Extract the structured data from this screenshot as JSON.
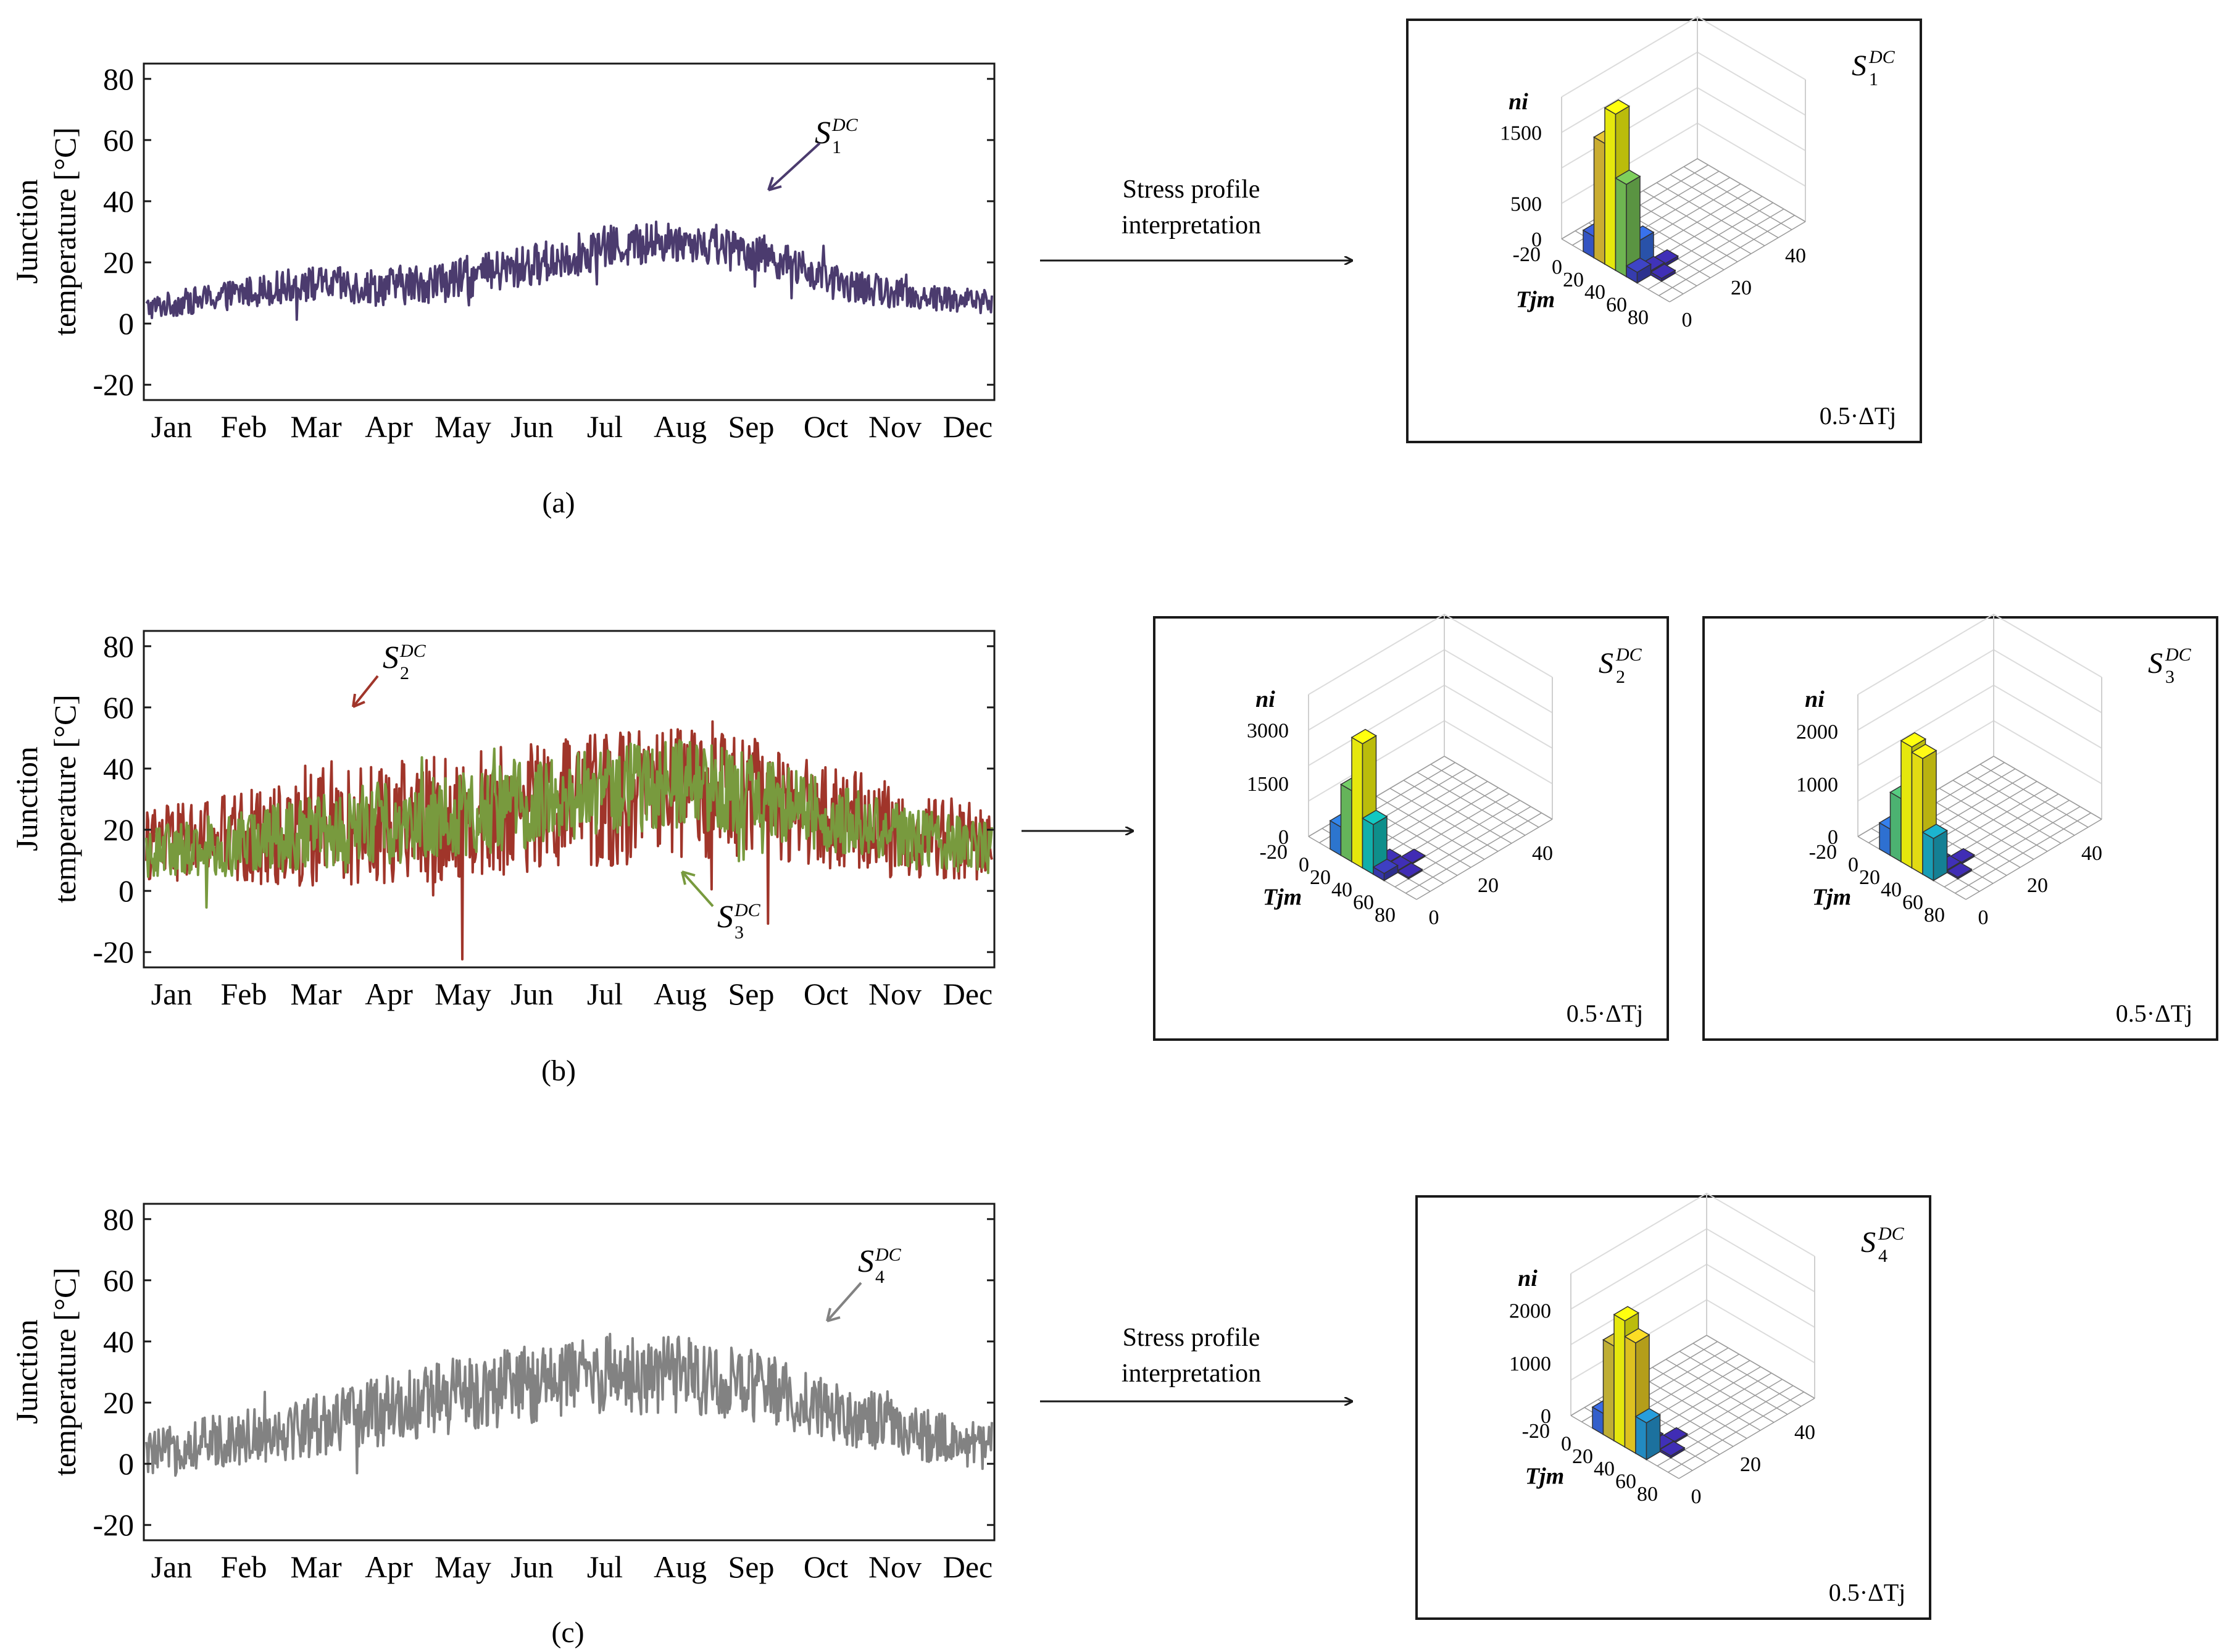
{
  "figure": {
    "arrow_text_line1": "Stress profile",
    "arrow_text_line2": "interpretation",
    "colors": {
      "s1": "#4b3b6e",
      "s2": "#a0352a",
      "s3": "#789a3e",
      "s4": "#828282"
    }
  },
  "chart_data": [
    {
      "type": "line",
      "panel": "(a)",
      "series": [
        {
          "name": "S1DC",
          "color": "#4b3b6e",
          "base": [
            5,
            9,
            13,
            12,
            14,
            19,
            25,
            27,
            23,
            13,
            9,
            7
          ],
          "amp": 7
        }
      ],
      "categories": [
        "Jan",
        "Feb",
        "Mar",
        "Apr",
        "May",
        "Jun",
        "Jul",
        "Aug",
        "Sep",
        "Oct",
        "Nov",
        "Dec"
      ],
      "yticks": [
        -20,
        0,
        20,
        40,
        60,
        80
      ],
      "ylim": [
        -25,
        85
      ],
      "ylabel_line1": "Junction",
      "ylabel_line2": "temperature [°C]",
      "annotation": {
        "base": "S",
        "sub": "1",
        "sup": "DC"
      }
    },
    {
      "type": "line",
      "panel": "(b)",
      "series": [
        {
          "name": "S2DC",
          "color": "#a0352a",
          "base": [
            15,
            17,
            19,
            22,
            24,
            27,
            30,
            32,
            30,
            24,
            18,
            16
          ],
          "amp": 22
        },
        {
          "name": "S3DC",
          "color": "#789a3e",
          "base": [
            13,
            15,
            18,
            22,
            25,
            29,
            33,
            35,
            31,
            24,
            17,
            14
          ],
          "amp": 15
        }
      ],
      "categories": [
        "Jan",
        "Feb",
        "Mar",
        "Apr",
        "May",
        "Jun",
        "Jul",
        "Aug",
        "Sep",
        "Oct",
        "Nov",
        "Dec"
      ],
      "yticks": [
        -20,
        0,
        20,
        40,
        60,
        80
      ],
      "ylim": [
        -25,
        85
      ],
      "ylabel_line1": "Junction",
      "ylabel_line2": "temperature [°C]",
      "annotations": [
        {
          "base": "S",
          "sub": "2",
          "sup": "DC"
        },
        {
          "base": "S",
          "sub": "3",
          "sup": "DC"
        }
      ]
    },
    {
      "type": "line",
      "panel": "(c)",
      "series": [
        {
          "name": "S4DC",
          "color": "#828282",
          "base": [
            3,
            8,
            12,
            17,
            22,
            26,
            30,
            29,
            25,
            17,
            10,
            5
          ],
          "amp": 13
        }
      ],
      "categories": [
        "Jan",
        "Feb",
        "Mar",
        "Apr",
        "May",
        "Jun",
        "Jul",
        "Aug",
        "Sep",
        "Oct",
        "Nov",
        "Dec"
      ],
      "yticks": [
        -20,
        0,
        20,
        40,
        60,
        80
      ],
      "ylim": [
        -25,
        85
      ],
      "ylabel_line1": "Junction",
      "ylabel_line2": "temperature [°C]",
      "annotation": {
        "base": "S",
        "sub": "4",
        "sup": "DC"
      }
    },
    {
      "type": "histogram3d",
      "name": "S1DC",
      "series_label": {
        "base": "S",
        "sub": "1",
        "sup": "DC"
      },
      "zlabel": "ni",
      "zticks": [
        0,
        500,
        1500
      ],
      "zmax": 2000,
      "xlabel": "Tjm",
      "xticks": [
        -20,
        0,
        20,
        40,
        60,
        80
      ],
      "ylabel": "0.5·ΔTj",
      "yticks": [
        0,
        20,
        40
      ],
      "bars": [
        {
          "t": 0,
          "d": 0,
          "v": 300
        },
        {
          "t": 10,
          "d": 0,
          "v": 1700
        },
        {
          "t": 20,
          "d": 0,
          "v": 2200
        },
        {
          "t": 30,
          "d": 0,
          "v": 1300
        },
        {
          "t": 40,
          "d": 0,
          "v": 150
        },
        {
          "t": 30,
          "d": 5,
          "v": 400
        },
        {
          "t": 40,
          "d": 5,
          "v": 60
        },
        {
          "t": 50,
          "d": 5,
          "v": 40
        },
        {
          "t": 40,
          "d": 10,
          "v": 40
        }
      ]
    },
    {
      "type": "histogram3d",
      "name": "S2DC",
      "series_label": {
        "base": "S",
        "sub": "2",
        "sup": "DC"
      },
      "zlabel": "ni",
      "zticks": [
        0,
        1500,
        3000
      ],
      "zmax": 4000,
      "xlabel": "Tjm",
      "xticks": [
        -20,
        0,
        20,
        40,
        60,
        80
      ],
      "ylabel": "0.5·ΔTj",
      "yticks": [
        0,
        20,
        40
      ],
      "bars": [
        {
          "t": 0,
          "d": 0,
          "v": 800
        },
        {
          "t": 10,
          "d": 0,
          "v": 2000
        },
        {
          "t": 20,
          "d": 0,
          "v": 3500
        },
        {
          "t": 30,
          "d": 0,
          "v": 1400
        },
        {
          "t": 40,
          "d": 0,
          "v": 200
        },
        {
          "t": 30,
          "d": 5,
          "v": 80
        },
        {
          "t": 40,
          "d": 5,
          "v": 60
        },
        {
          "t": 50,
          "d": 5,
          "v": 40
        },
        {
          "t": 40,
          "d": 10,
          "v": 30
        }
      ]
    },
    {
      "type": "histogram3d",
      "name": "S3DC",
      "series_label": {
        "base": "S",
        "sub": "3",
        "sup": "DC"
      },
      "zlabel": "ni",
      "zticks": [
        0,
        1000,
        2000
      ],
      "zmax": 2700,
      "xlabel": "Tjm",
      "xticks": [
        -20,
        0,
        20,
        40,
        60,
        80
      ],
      "ylabel": "0.5·ΔTj",
      "yticks": [
        0,
        20,
        40
      ],
      "bars": [
        {
          "t": 0,
          "d": 0,
          "v": 500
        },
        {
          "t": 10,
          "d": 0,
          "v": 1200
        },
        {
          "t": 20,
          "d": 0,
          "v": 2300
        },
        {
          "t": 30,
          "d": 0,
          "v": 2200
        },
        {
          "t": 40,
          "d": 0,
          "v": 800
        },
        {
          "t": 30,
          "d": 5,
          "v": 60
        },
        {
          "t": 40,
          "d": 5,
          "v": 50
        },
        {
          "t": 50,
          "d": 5,
          "v": 30
        },
        {
          "t": 40,
          "d": 10,
          "v": 30
        }
      ]
    },
    {
      "type": "histogram3d",
      "name": "S4DC",
      "series_label": {
        "base": "S",
        "sub": "4",
        "sup": "DC"
      },
      "zlabel": "ni",
      "zticks": [
        0,
        1000,
        2000
      ],
      "zmax": 2700,
      "xlabel": "Tjm",
      "xticks": [
        -20,
        0,
        20,
        40,
        60,
        80
      ],
      "ylabel": "0.5·ΔTj",
      "yticks": [
        0,
        20,
        40
      ],
      "bars": [
        {
          "t": 0,
          "d": 0,
          "v": 400
        },
        {
          "t": 10,
          "d": 0,
          "v": 1800
        },
        {
          "t": 20,
          "d": 0,
          "v": 2400
        },
        {
          "t": 30,
          "d": 0,
          "v": 2100
        },
        {
          "t": 40,
          "d": 0,
          "v": 700
        },
        {
          "t": 30,
          "d": 5,
          "v": 70
        },
        {
          "t": 40,
          "d": 5,
          "v": 50
        },
        {
          "t": 50,
          "d": 5,
          "v": 40
        },
        {
          "t": 40,
          "d": 10,
          "v": 30
        }
      ]
    }
  ]
}
